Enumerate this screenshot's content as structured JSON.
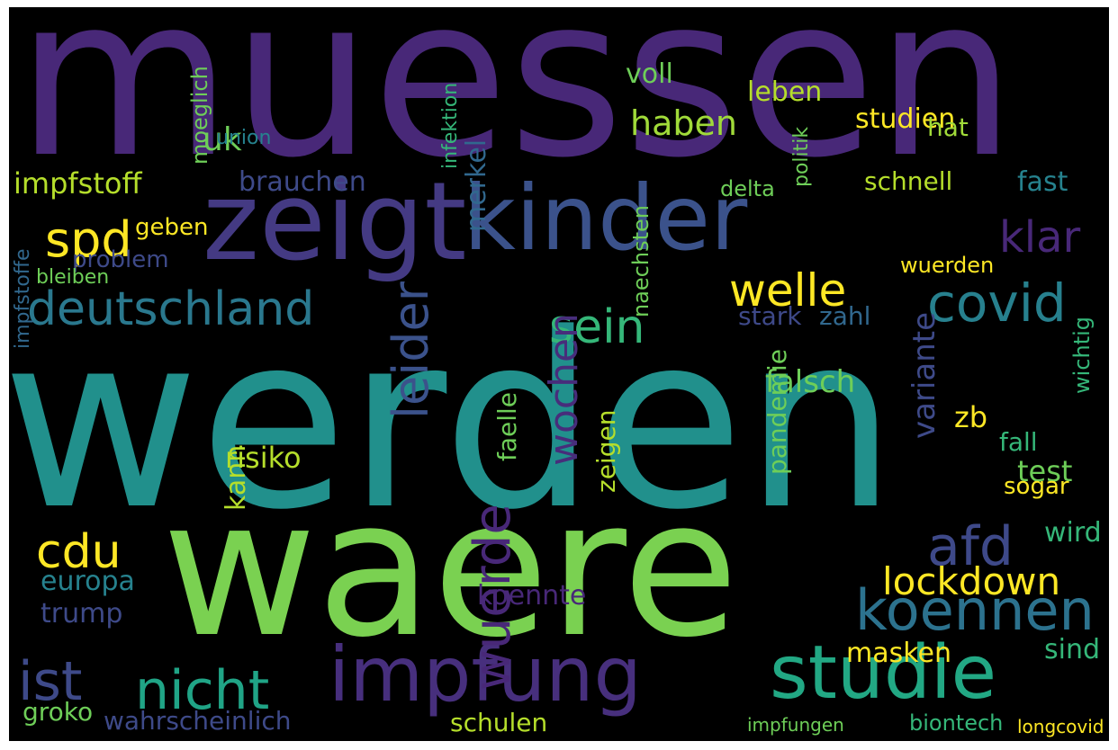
{
  "wordcloud": {
    "colors": {
      "background": "#000000",
      "palette": [
        "#440154",
        "#482878",
        "#3e4989",
        "#31688e",
        "#26828e",
        "#1f9e89",
        "#35b779",
        "#6ece58",
        "#b5de2b",
        "#fde725"
      ]
    },
    "words": [
      {
        "text": "muessen",
        "color": "#482878"
      },
      {
        "text": "werden",
        "color": "#21908c"
      },
      {
        "text": "waere",
        "color": "#7ad151"
      },
      {
        "text": "zeigt",
        "color": "#443a83"
      },
      {
        "text": "kinder",
        "color": "#3b528b"
      },
      {
        "text": "impfung",
        "color": "#472f7d"
      },
      {
        "text": "studie",
        "color": "#22a884"
      },
      {
        "text": "koennen",
        "color": "#2c728e"
      },
      {
        "text": "covid",
        "color": "#27808e"
      },
      {
        "text": "deutschland",
        "color": "#2a788e"
      },
      {
        "text": "ist",
        "color": "#3e4a89"
      },
      {
        "text": "nicht",
        "color": "#20a486"
      },
      {
        "text": "sein",
        "color": "#35b779"
      },
      {
        "text": "welle",
        "color": "#fde725"
      },
      {
        "text": "afd",
        "color": "#3e4989"
      },
      {
        "text": "lockdown",
        "color": "#fde725"
      },
      {
        "text": "cdu",
        "color": "#fde725"
      },
      {
        "text": "spd",
        "color": "#fde725"
      },
      {
        "text": "klar",
        "color": "#482878"
      },
      {
        "text": "leider",
        "color": "#3b528b"
      },
      {
        "text": "wuerde",
        "color": "#482878"
      },
      {
        "text": "wochen",
        "color": "#472d7b"
      },
      {
        "text": "impfstoff",
        "color": "#b5de2b"
      },
      {
        "text": "brauchen",
        "color": "#3e4a89"
      },
      {
        "text": "merkel",
        "color": "#31688e"
      },
      {
        "text": "uk",
        "color": "#6ece58"
      },
      {
        "text": "haben",
        "color": "#a0da39"
      },
      {
        "text": "leben",
        "color": "#b5de2b"
      },
      {
        "text": "voll",
        "color": "#6ece58"
      },
      {
        "text": "studien",
        "color": "#fde725"
      },
      {
        "text": "hat",
        "color": "#a0da39"
      },
      {
        "text": "fast",
        "color": "#26828e"
      },
      {
        "text": "schnell",
        "color": "#b5de2b"
      },
      {
        "text": "stark",
        "color": "#3e4989"
      },
      {
        "text": "zahl",
        "color": "#31688e"
      },
      {
        "text": "variante",
        "color": "#3e4a89"
      },
      {
        "text": "falsch",
        "color": "#6ece58"
      },
      {
        "text": "test",
        "color": "#6ece58"
      },
      {
        "text": "fall",
        "color": "#35b779"
      },
      {
        "text": "sogar",
        "color": "#fde725"
      },
      {
        "text": "risiko",
        "color": "#b5de2b"
      },
      {
        "text": "kann",
        "color": "#b5de2b"
      },
      {
        "text": "europa",
        "color": "#26828e"
      },
      {
        "text": "trump",
        "color": "#3e4a89"
      },
      {
        "text": "groko",
        "color": "#6ece58"
      },
      {
        "text": "wahrscheinlich",
        "color": "#3e4a89"
      },
      {
        "text": "schulen",
        "color": "#b5de2b"
      },
      {
        "text": "masken",
        "color": "#fde725"
      },
      {
        "text": "sind",
        "color": "#35b779"
      },
      {
        "text": "koennte",
        "color": "#482878"
      },
      {
        "text": "zeigen",
        "color": "#b5de2b"
      },
      {
        "text": "faelle",
        "color": "#6ece58"
      },
      {
        "text": "pandemie",
        "color": "#6ece58"
      },
      {
        "text": "zb",
        "color": "#fde725"
      },
      {
        "text": "wird",
        "color": "#35b779"
      },
      {
        "text": "problem",
        "color": "#3e4a89"
      },
      {
        "text": "geben",
        "color": "#fde725"
      },
      {
        "text": "bleiben",
        "color": "#6ece58"
      },
      {
        "text": "impfstoffe",
        "color": "#31688e"
      },
      {
        "text": "moeglich",
        "color": "#6ece58"
      },
      {
        "text": "union",
        "color": "#26828e"
      },
      {
        "text": "infektion",
        "color": "#35b779"
      },
      {
        "text": "politik",
        "color": "#6ece58"
      },
      {
        "text": "delta",
        "color": "#6ece58"
      },
      {
        "text": "wuerden",
        "color": "#fde725"
      },
      {
        "text": "wichtig",
        "color": "#35b779"
      },
      {
        "text": "naechsten",
        "color": "#6ece58"
      },
      {
        "text": "biontech",
        "color": "#35b779"
      },
      {
        "text": "impfungen",
        "color": "#6ece58"
      },
      {
        "text": "longcovid",
        "color": "#fde725"
      },
      {
        "text": "nicht",
        "color": "#1f9e89"
      }
    ]
  }
}
